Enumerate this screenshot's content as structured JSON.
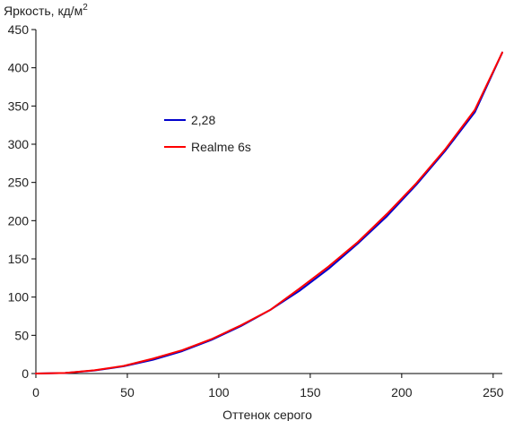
{
  "chart_data": {
    "type": "line",
    "title": "",
    "ylabel": "Яркость, кд/м",
    "ylabel_sup": "2",
    "xlabel": "Оттенок серого",
    "xlim": [
      0,
      255
    ],
    "ylim": [
      0,
      450
    ],
    "xticks": [
      0,
      50,
      100,
      150,
      200,
      250
    ],
    "yticks": [
      0,
      50,
      100,
      150,
      200,
      250,
      300,
      350,
      400,
      450
    ],
    "grid": false,
    "legend_position": "center-left",
    "series": [
      {
        "name": "2,28",
        "color": "#0000cc",
        "x": [
          0,
          16,
          32,
          48,
          64,
          80,
          96,
          112,
          128,
          144,
          160,
          176,
          192,
          208,
          224,
          240,
          255
        ],
        "y": [
          0,
          0.8,
          3.9,
          9.5,
          18.0,
          29.3,
          44,
          62,
          83,
          108,
          137,
          170,
          206,
          247,
          292,
          342,
          420
        ]
      },
      {
        "name": "Realme 6s",
        "color": "#ff0000",
        "x": [
          0,
          16,
          32,
          48,
          64,
          80,
          96,
          112,
          128,
          144,
          160,
          176,
          192,
          208,
          224,
          240,
          255
        ],
        "y": [
          0,
          0.8,
          4.2,
          10.0,
          19.5,
          30.5,
          45,
          63,
          83,
          111,
          140,
          172,
          209,
          249,
          294,
          345,
          420
        ]
      }
    ]
  }
}
